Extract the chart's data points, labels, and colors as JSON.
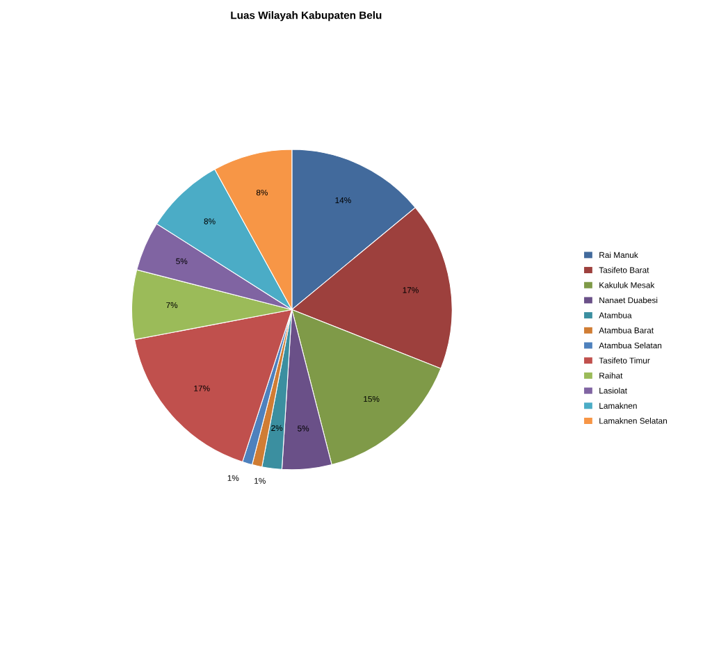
{
  "chart_data": {
    "type": "pie",
    "title": "Luas Wilayah Kabupaten Belu",
    "categories": [
      "Rai Manuk",
      "Tasifeto Barat",
      "Kakuluk Mesak",
      "Nanaet Duabesi",
      "Atambua",
      "Atambua Barat",
      "Atambua Selatan",
      "Tasifeto Timur",
      "Raihat",
      "Lasiolat",
      "Lamaknen",
      "Lamaknen Selatan"
    ],
    "values": [
      14,
      17,
      15,
      5,
      2,
      1,
      1,
      17,
      7,
      5,
      8,
      8
    ],
    "colors": [
      "#426a9c",
      "#9d403d",
      "#7f9a48",
      "#6a5088",
      "#3b8fa0",
      "#d07d34",
      "#4e81bd",
      "#c0504d",
      "#9bbb59",
      "#8064a2",
      "#4bacc6",
      "#f79646"
    ],
    "value_labels": [
      "14%",
      "17%",
      "15%",
      "5%",
      "2%",
      "1%",
      "1%",
      "17%",
      "7%",
      "5%",
      "8%",
      "8%"
    ],
    "legend": "right"
  }
}
